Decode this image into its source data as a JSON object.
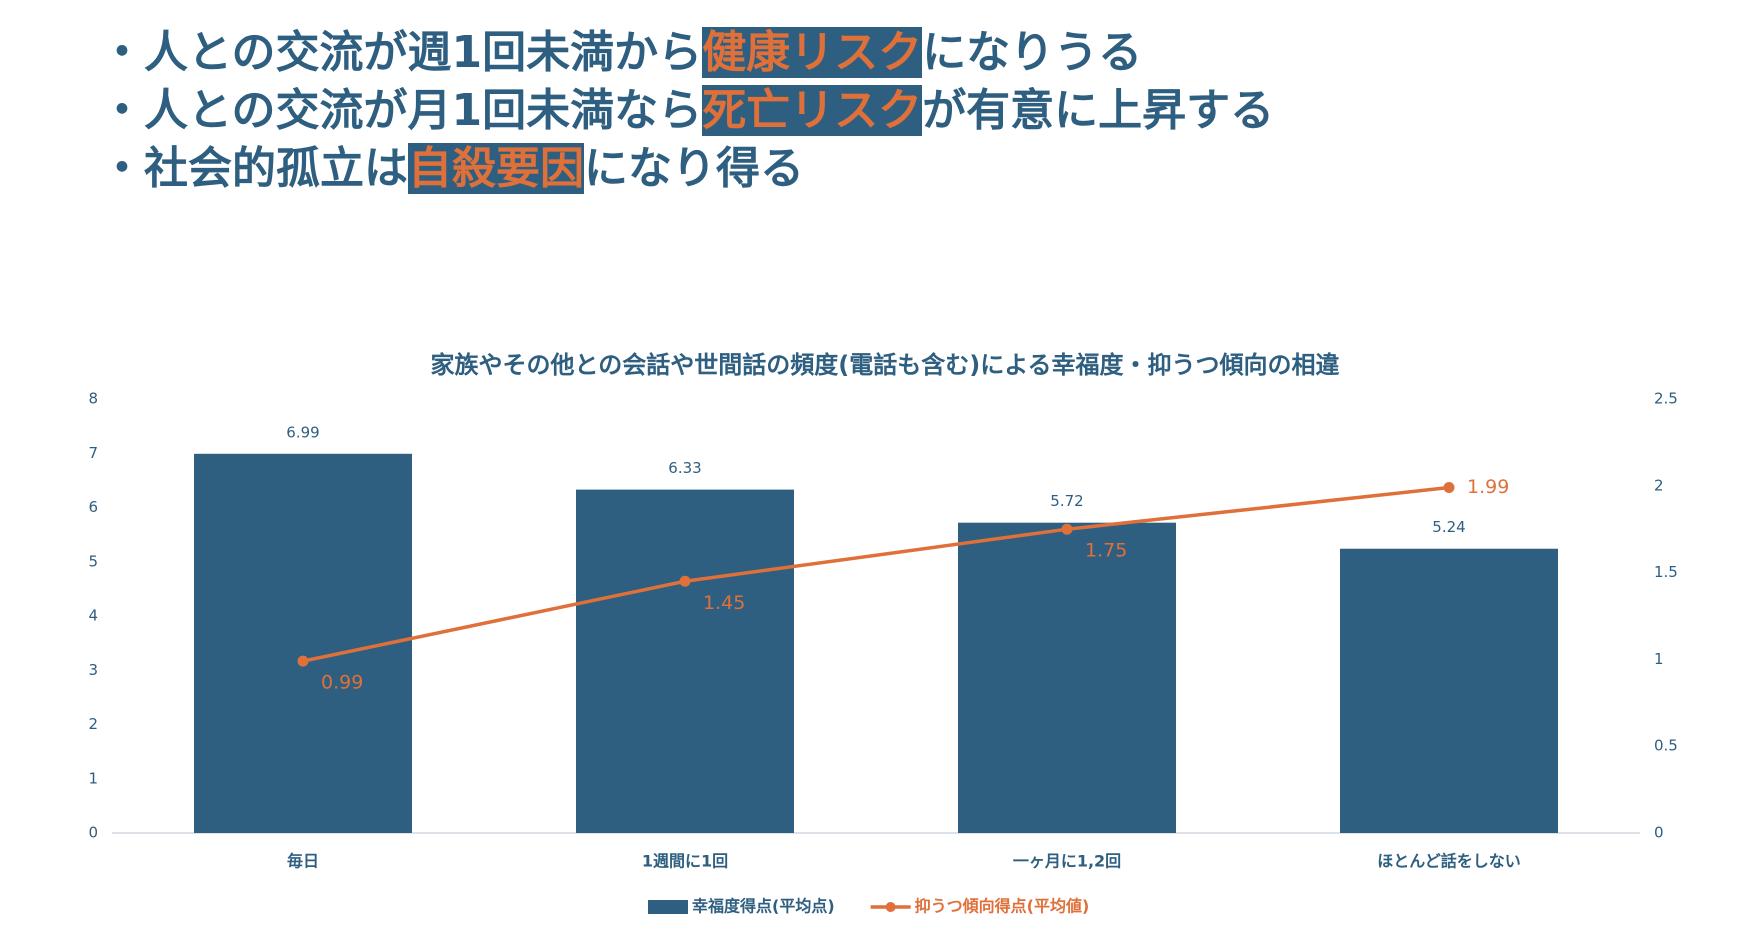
{
  "bullets": [
    {
      "parts": [
        {
          "text": "・人との交流が週1回未満から"
        },
        {
          "text": "健康リスク",
          "highlight": true
        },
        {
          "text": "になりうる"
        }
      ]
    },
    {
      "parts": [
        {
          "text": "・人との交流が月1回未満なら"
        },
        {
          "text": "死亡リスク",
          "highlight": true
        },
        {
          "text": "が有意に上昇する"
        }
      ]
    },
    {
      "parts": [
        {
          "text": "・社会的孤立は"
        },
        {
          "text": "自殺要因",
          "highlight": true
        },
        {
          "text": "になり得る"
        }
      ]
    }
  ],
  "chart_data": {
    "type": "bar",
    "title": "家族やその他との会話や世間話の頻度(電話も含む)による幸福度・抑うつ傾向の相違",
    "categories": [
      "毎日",
      "1週間に1回",
      "一ヶ月に1,2回",
      "ほとんど話をしない"
    ],
    "series": [
      {
        "name": "幸福度得点(平均点)",
        "color": "#2e5f80",
        "values": [
          6.99,
          6.33,
          5.72,
          5.24
        ]
      },
      {
        "name": "抑うつ傾向得点(平均値)",
        "type": "line",
        "axis": "y2",
        "color": "#e0703a",
        "values": [
          0.99,
          1.45,
          1.75,
          1.99
        ]
      }
    ],
    "ylim": [
      0,
      8
    ],
    "yticks": [
      0,
      1,
      2,
      3,
      4,
      5,
      6,
      7,
      8
    ],
    "y2lim": [
      0,
      2.5
    ],
    "y2ticks": [
      0,
      0.5,
      1,
      1.5,
      2,
      2.5
    ],
    "grid": false,
    "legend": "bottom"
  }
}
